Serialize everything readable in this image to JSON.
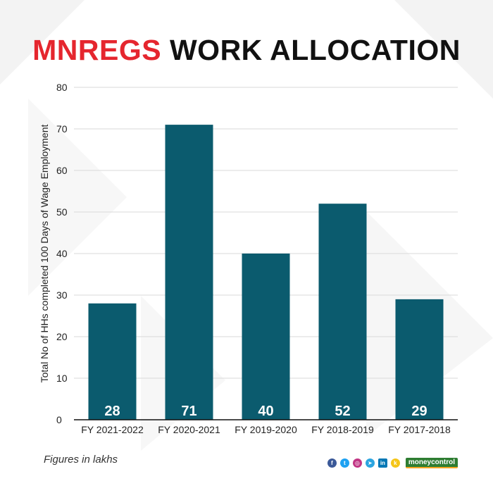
{
  "header": {
    "title_accent": "MNREGS",
    "title_rest": "WORK ALLOCATION"
  },
  "footnote": "Figures in lakhs",
  "brand": "moneycontrol",
  "social_icons": [
    "facebook-icon",
    "twitter-icon",
    "instagram-icon",
    "telegram-icon",
    "linkedin-icon",
    "koo-icon"
  ],
  "colors": {
    "bar": "#0b5b6e",
    "accent": "#e5262e",
    "grid": "#d9d9d9",
    "axis": "#111111"
  },
  "chart_data": {
    "type": "bar",
    "title": "MNREGS WORK ALLOCATION",
    "categories": [
      "FY 2021-2022",
      "FY 2020-2021",
      "FY 2019-2020",
      "FY 2018-2019",
      "FY 2017-2018"
    ],
    "values": [
      28,
      71,
      40,
      52,
      29
    ],
    "ylabel": "Total No of HHs completed 100 Days of Wage Employment",
    "xlabel": "",
    "ylim": [
      0,
      80
    ],
    "yticks": [
      0,
      10,
      20,
      30,
      40,
      50,
      60,
      70,
      80
    ],
    "grid": true,
    "legend": false,
    "data_labels": "inside-bottom"
  }
}
